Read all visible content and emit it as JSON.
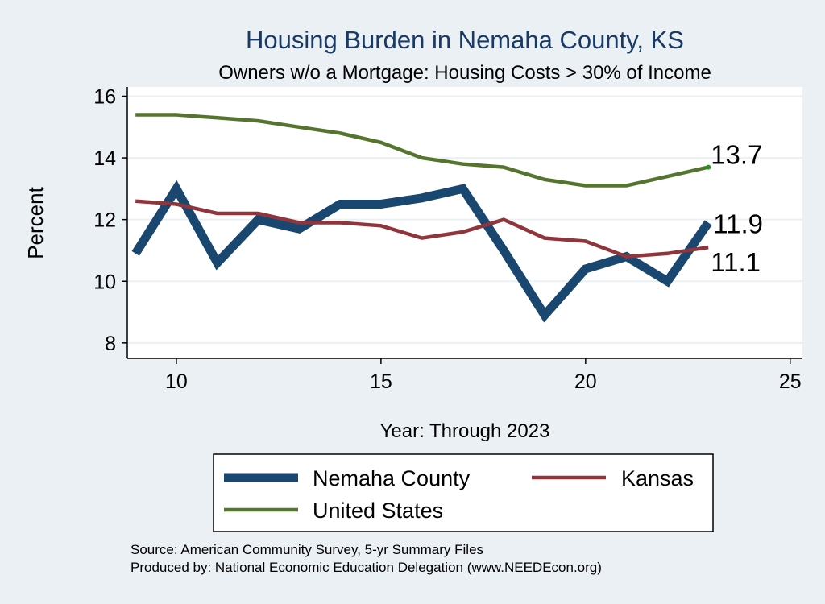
{
  "chart_data": {
    "type": "line",
    "title": "Housing Burden in Nemaha County, KS",
    "subtitle": "Owners w/o a Mortgage: Housing Costs > 30% of Income",
    "xlabel": "Year: Through 2023",
    "ylabel": "Percent",
    "xlim": [
      8.8,
      25.3
    ],
    "ylim": [
      7.5,
      16.3
    ],
    "x_ticks": [
      10,
      15,
      20,
      25
    ],
    "y_ticks": [
      8,
      10,
      12,
      14,
      16
    ],
    "grid": true,
    "legend_position": "bottom",
    "series": [
      {
        "name": "Nemaha County",
        "color": "#1a476f",
        "weight": "thick",
        "x": [
          9,
          10,
          11,
          12,
          13,
          14,
          15,
          16,
          17,
          18,
          19,
          20,
          21,
          22,
          23
        ],
        "values": [
          10.9,
          13.0,
          10.6,
          12.0,
          11.7,
          12.5,
          12.5,
          12.7,
          13.0,
          11.0,
          8.9,
          10.4,
          10.8,
          10.0,
          11.9
        ],
        "end_label": "11.9"
      },
      {
        "name": "Kansas",
        "color": "#90353b",
        "weight": "medium",
        "x": [
          9,
          10,
          11,
          12,
          13,
          14,
          15,
          16,
          17,
          18,
          19,
          20,
          21,
          22,
          23
        ],
        "values": [
          12.6,
          12.5,
          12.2,
          12.2,
          11.9,
          11.9,
          11.8,
          11.4,
          11.6,
          12.0,
          11.4,
          11.3,
          10.8,
          10.9,
          11.1
        ],
        "end_label": "11.1"
      },
      {
        "name": "United States",
        "color": "#55752f",
        "weight": "medium",
        "x": [
          9,
          10,
          11,
          12,
          13,
          14,
          15,
          16,
          17,
          18,
          19,
          20,
          21,
          22,
          23
        ],
        "values": [
          15.4,
          15.4,
          15.3,
          15.2,
          15.0,
          14.8,
          14.5,
          14.0,
          13.8,
          13.7,
          13.3,
          13.1,
          13.1,
          13.4,
          13.7
        ],
        "end_label": "13.7"
      }
    ]
  },
  "footer": {
    "source": "Source: American Community Survey, 5-yr Summary Files",
    "produced": "Produced by: National Economic Education Delegation (www.NEEDEcon.org)"
  }
}
